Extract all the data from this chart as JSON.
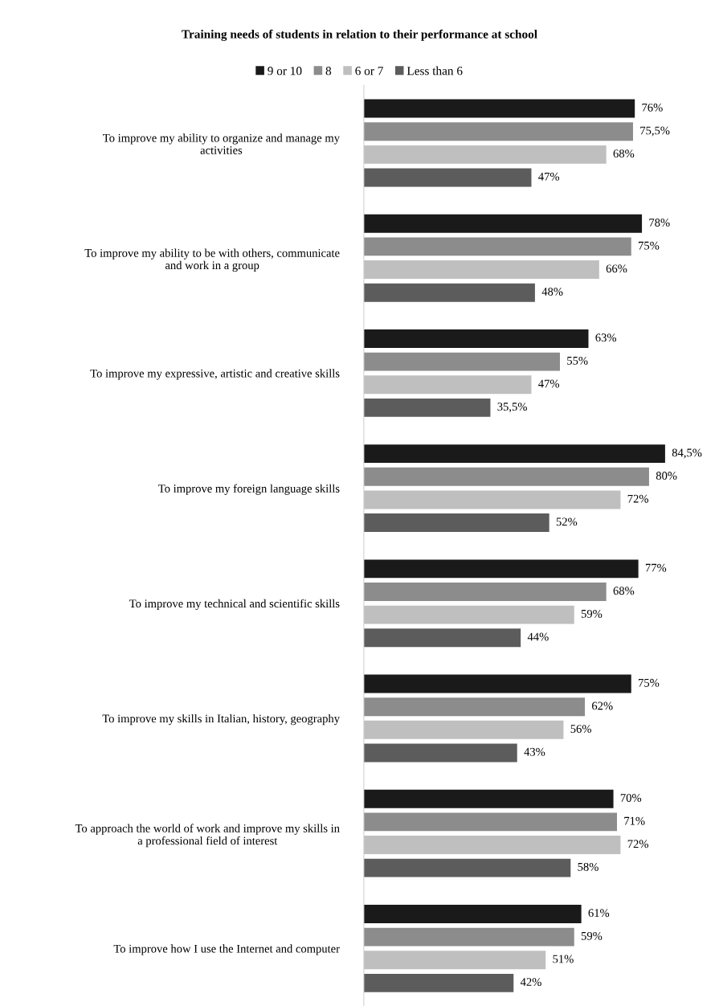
{
  "chart_data": {
    "type": "bar",
    "orientation": "horizontal",
    "title": "Training needs of students in relation to their performance at school",
    "categories": [
      "To improve my ability to organize and manage my\nactivities",
      "To improve my ability to be with others, communicate\nand work in a group",
      "To improve my expressive, artistic and creative skills",
      "To improve my foreign language skills",
      "To improve my technical and scientific skills",
      "To improve my skills in Italian, history, geography",
      "To approach the world of work and improve my skills in\na professional field of interest",
      "To improve how I use the Internet and computer"
    ],
    "series": [
      {
        "name": "9 or 10",
        "color": "#1a1a1a",
        "values": [
          76,
          78,
          63,
          84.5,
          77,
          75,
          70,
          61
        ],
        "value_labels": [
          "76%",
          "78%",
          "63%",
          "84,5%",
          "77%",
          "75%",
          "70%",
          "61%"
        ]
      },
      {
        "name": "8",
        "color": "#8c8c8c",
        "values": [
          75.5,
          75,
          55,
          80,
          68,
          62,
          71,
          59
        ],
        "value_labels": [
          "75,5%",
          "75%",
          "55%",
          "80%",
          "68%",
          "62%",
          "71%",
          "59%"
        ]
      },
      {
        "name": "6 or 7",
        "color": "#bfbfbf",
        "values": [
          68,
          66,
          47,
          72,
          59,
          56,
          72,
          51
        ],
        "value_labels": [
          "68%",
          "66%",
          "47%",
          "72%",
          "59%",
          "56%",
          "72%",
          "51%"
        ]
      },
      {
        "name": "Less than 6",
        "color": "#5c5c5c",
        "values": [
          47,
          48,
          35.5,
          52,
          44,
          43,
          58,
          42
        ],
        "value_labels": [
          "47%",
          "48%",
          "35,5%",
          "52%",
          "44%",
          "43%",
          "58%",
          "42%"
        ]
      }
    ],
    "tick_labels": "y",
    "grid": false,
    "legend": "top"
  }
}
